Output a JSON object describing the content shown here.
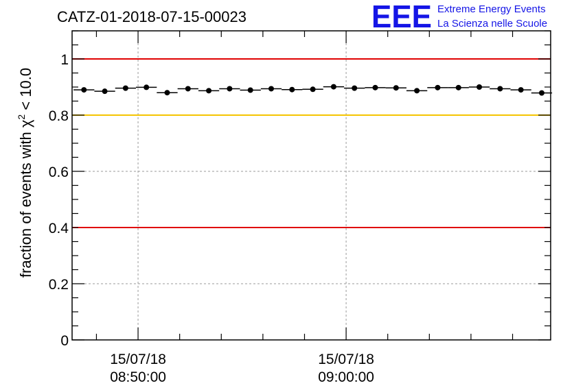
{
  "header": {
    "run_title": "CATZ-01-2018-07-15-00023",
    "logo_acronym": "EEE",
    "logo_line1": "Extreme Energy Events",
    "logo_line2": "La Scienza nelle Scuole"
  },
  "chart_data": {
    "type": "scatter",
    "title": "CATZ-01-2018-07-15-00023",
    "ylabel_main": "fraction of events with χ",
    "ylabel_sup": "2",
    "ylabel_tail": " < 10.0",
    "xlabel": "",
    "ylim": [
      0,
      1.1
    ],
    "xlim_minutes": [
      -3.17,
      19.83
    ],
    "y_ticks": [
      {
        "value": 0,
        "label": "0"
      },
      {
        "value": 0.2,
        "label": "0.2"
      },
      {
        "value": 0.4,
        "label": "0.4"
      },
      {
        "value": 0.6,
        "label": "0.6"
      },
      {
        "value": 0.8,
        "label": "0.8"
      },
      {
        "value": 1,
        "label": "1"
      }
    ],
    "x_ticks": [
      {
        "minute": 0,
        "date": "15/07/18",
        "time": "08:50:00"
      },
      {
        "minute": 10,
        "date": "15/07/18",
        "time": "09:00:00"
      }
    ],
    "grid": true,
    "reference_lines": [
      {
        "value": 1.0,
        "color": "#e00000"
      },
      {
        "value": 0.8,
        "color": "#f5c400"
      },
      {
        "value": 0.4,
        "color": "#e00000"
      }
    ],
    "bin_width_minutes": 1.0,
    "series": [
      {
        "x_minutes": [
          -2.6,
          -1.6,
          -0.6,
          0.4,
          1.4,
          2.4,
          3.4,
          4.4,
          5.4,
          6.4,
          7.4,
          8.4,
          9.4,
          10.4,
          11.4,
          12.4,
          13.4,
          14.4,
          15.4,
          16.4,
          17.4,
          18.4,
          19.4
        ],
        "values": [
          0.89,
          0.885,
          0.896,
          0.899,
          0.88,
          0.894,
          0.887,
          0.894,
          0.889,
          0.894,
          0.891,
          0.892,
          0.901,
          0.896,
          0.898,
          0.897,
          0.887,
          0.898,
          0.898,
          0.9,
          0.894,
          0.89,
          0.879
        ]
      }
    ],
    "marker_color": "#000000"
  }
}
